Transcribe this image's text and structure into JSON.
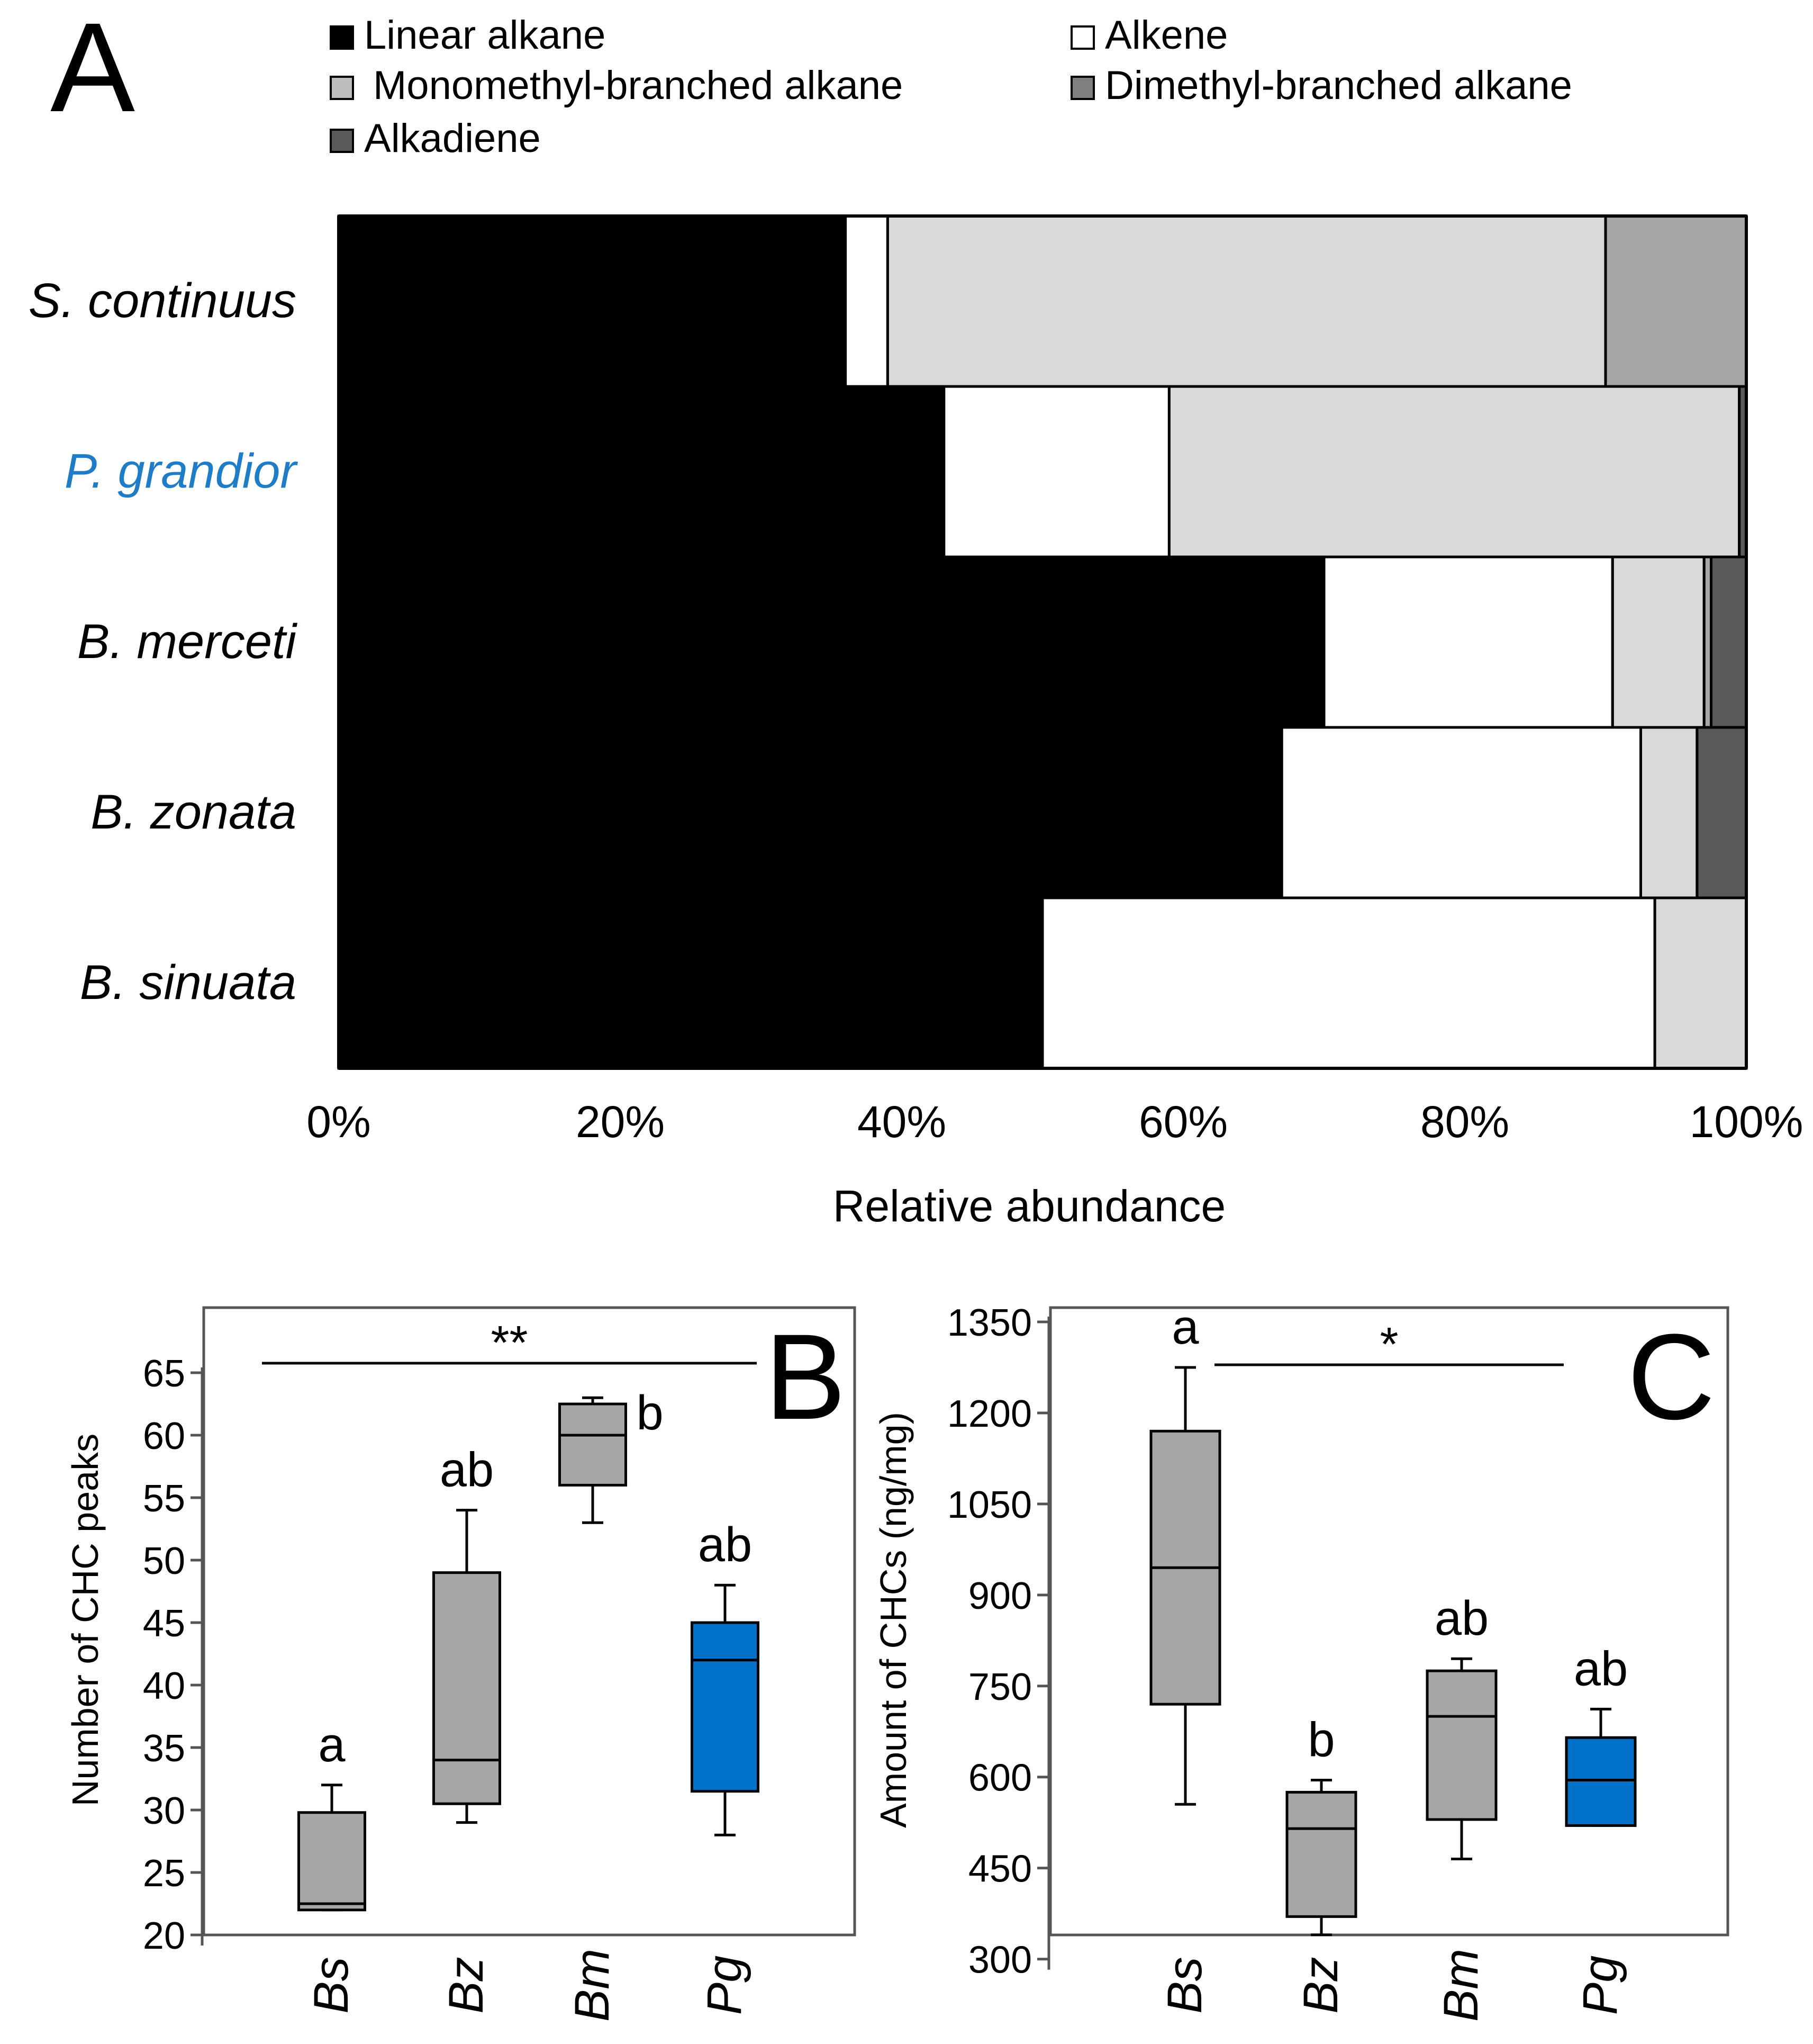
{
  "colors": {
    "linear_alkane": "#000000",
    "alkene": "#ffffff",
    "monomethyl": "#d9d9d9",
    "dimethyl": "#a6a6a6",
    "alkadiene": "#595959",
    "box_gray": "#a6a6a6",
    "box_blue": "#0070c8",
    "highlight_label": "#1f7dc8"
  },
  "chart_data": [
    {
      "panel": "A",
      "type": "bar",
      "stacked": true,
      "orientation": "horizontal",
      "xlabel": "Relative abundance",
      "xlim": [
        0,
        100
      ],
      "x_ticks": [
        "0%",
        "20%",
        "40%",
        "60%",
        "80%",
        "100%"
      ],
      "legend_position": "top",
      "categories": [
        "S. continuus",
        "P. grandior",
        "B. merceti",
        "B. zonata",
        "B. sinuata"
      ],
      "highlighted_category": "P. grandior",
      "series": [
        {
          "name": "Linear alkane",
          "values": [
            36,
            43,
            70,
            67,
            50
          ]
        },
        {
          "name": "Alkene",
          "values": [
            3,
            16,
            20.5,
            25.5,
            43.5
          ]
        },
        {
          "name": "Monomethyl-branched alkane",
          "values": [
            51,
            40.5,
            6.5,
            4,
            6.5
          ]
        },
        {
          "name": "Dimethyl-branched alkane",
          "values": [
            10,
            0,
            0.5,
            0,
            0
          ]
        },
        {
          "name": "Alkadiene",
          "values": [
            0,
            0.5,
            2.5,
            3.5,
            0
          ]
        }
      ]
    },
    {
      "panel": "B",
      "type": "box",
      "ylabel": "Number of CHC peaks",
      "ylim": [
        20,
        65
      ],
      "y_ticks": [
        20,
        25,
        30,
        35,
        40,
        45,
        50,
        55,
        60,
        65
      ],
      "categories": [
        "Bs",
        "Bz",
        "Bm",
        "Pg"
      ],
      "boxes": [
        {
          "min": 22,
          "q1": 22,
          "median": 22.5,
          "q3": 29.8,
          "max": 32,
          "letter": "a"
        },
        {
          "min": 29,
          "q1": 30.5,
          "median": 34,
          "q3": 49,
          "max": 54,
          "letter": "ab"
        },
        {
          "min": 53,
          "q1": 56,
          "median": 60,
          "q3": 62.5,
          "max": 63,
          "letter": "b"
        },
        {
          "min": 28,
          "q1": 31.5,
          "median": 42,
          "q3": 45,
          "max": 48,
          "letter": "ab"
        }
      ],
      "significance": "**"
    },
    {
      "panel": "C",
      "type": "box",
      "ylabel": "Amount of CHCs (ng/mg)",
      "ylim": [
        270,
        1350
      ],
      "y_ticks": [
        300,
        450,
        600,
        750,
        900,
        1050,
        1200,
        1350
      ],
      "categories": [
        "Bs",
        "Bz",
        "Bm",
        "Pg"
      ],
      "boxes": [
        {
          "min": 555,
          "q1": 720,
          "median": 945,
          "q3": 1170,
          "max": 1275,
          "letter": "a"
        },
        {
          "min": 340,
          "q1": 370,
          "median": 515,
          "q3": 575,
          "max": 595,
          "letter": "b"
        },
        {
          "min": 465,
          "q1": 530,
          "median": 700,
          "q3": 775,
          "max": 795,
          "letter": "ab"
        },
        {
          "min": 520,
          "q1": 520,
          "median": 595,
          "q3": 665,
          "max": 712,
          "letter": "ab"
        }
      ],
      "significance": "*"
    }
  ]
}
